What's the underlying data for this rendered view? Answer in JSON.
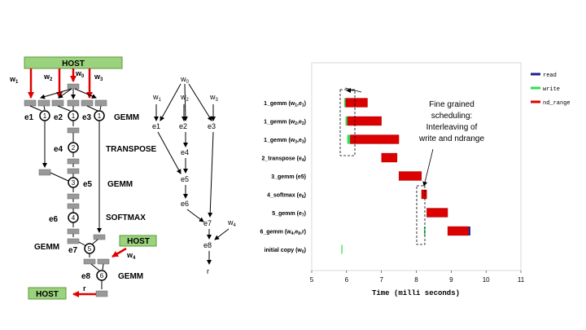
{
  "left_diagram": {
    "host_top": "HOST",
    "host_mid": "HOST",
    "host_bottom": "HOST",
    "w_labels": {
      "w1": "w",
      "w1_sub": "1",
      "w2": "w",
      "w2_sub": "2",
      "w0": "w",
      "w0_sub": "0",
      "w3": "w",
      "w3_sub": "3",
      "w4": "w",
      "w4_sub": "4"
    },
    "nodes": [
      "1",
      "1",
      "1",
      "2",
      "3",
      "4",
      "5",
      "6"
    ],
    "events": {
      "e1": "e1",
      "e2": "e2",
      "e3": "e3",
      "e4": "e4",
      "e5": "e5",
      "e6": "e6",
      "e7": "e7",
      "e8": "e8"
    },
    "ops": {
      "gemm1": "GEMM",
      "transpose": "TRANSPOSE",
      "gemm2": "GEMM",
      "softmax": "SOFTMAX",
      "gemm_left": "GEMM",
      "gemm_bottom": "GEMM"
    },
    "r": "r"
  },
  "mid_graph": {
    "w0": "w",
    "w0_sub": "0",
    "w1": "w",
    "w1_sub": "1",
    "w2": "w",
    "w2_sub": "2",
    "w3": "w",
    "w3_sub": "3",
    "w4": "w",
    "w4_sub": "4",
    "e1": "e1",
    "e2": "e2",
    "e3": "e3",
    "e4": "e4",
    "e5": "e5",
    "e6": "e6",
    "e7": "e7",
    "e8": "e8",
    "r": "r"
  },
  "chart_data": {
    "type": "timeline",
    "xlabel": "Time (milli seconds)",
    "xlim": [
      5,
      11
    ],
    "xticks": [
      "5",
      "6",
      "7",
      "8",
      "9",
      "10",
      "11"
    ],
    "legend": [
      {
        "name": "read",
        "color": "#1f1f8f"
      },
      {
        "name": "write",
        "color": "#33dd55"
      },
      {
        "name": "nd_range",
        "color": "#dd0000"
      }
    ],
    "rows": [
      {
        "label": "1_gemm (w",
        "sub1": "1",
        "mid": ",e",
        "sub2": "1",
        "tail": ")",
        "write": [
          5.93,
          5.97
        ],
        "nd_range": [
          5.97,
          6.6
        ]
      },
      {
        "label": "1_gemm (w",
        "sub1": "2",
        "mid": ",e",
        "sub2": "2",
        "tail": ")",
        "write": [
          5.97,
          6.02
        ],
        "nd_range": [
          6.02,
          7.0
        ]
      },
      {
        "label": "1_gemm (w",
        "sub1": "3",
        "mid": ",e",
        "sub2": "3",
        "tail": ")",
        "write": [
          6.02,
          6.1
        ],
        "nd_range": [
          6.1,
          7.5
        ]
      },
      {
        "label": "2_transpose (e",
        "sub1": "4",
        "mid": "",
        "sub2": "",
        "tail": ")",
        "nd_range": [
          7.0,
          7.45
        ]
      },
      {
        "label": "3_gemm (e5)",
        "sub1": "",
        "mid": "",
        "sub2": "",
        "tail": "",
        "nd_range": [
          7.5,
          8.15
        ]
      },
      {
        "label": "4_softmax (e",
        "sub1": "6",
        "mid": "",
        "sub2": "",
        "tail": ")",
        "nd_range": [
          8.15,
          8.3
        ]
      },
      {
        "label": "5_gemm (e",
        "sub1": "7",
        "mid": "",
        "sub2": "",
        "tail": ")",
        "nd_range": [
          8.3,
          8.9
        ]
      },
      {
        "label": "6_gemm (w",
        "sub1": "4",
        "mid": ",e",
        "sub2": "8",
        "tail": ",r)",
        "write": [
          8.22,
          8.26
        ],
        "nd_range": [
          8.9,
          9.5
        ],
        "read": [
          9.5,
          9.55
        ]
      },
      {
        "label": "initial copy (w",
        "sub1": "0",
        "mid": "",
        "sub2": "",
        "tail": ")",
        "write": [
          5.85,
          5.88
        ]
      }
    ],
    "annotation": [
      "Fine grained",
      "scheduling:",
      "Interleaving of",
      "write and ndrange"
    ]
  }
}
